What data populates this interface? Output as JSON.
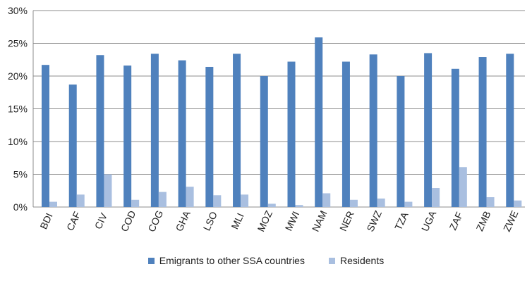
{
  "chart_data": {
    "type": "bar",
    "categories": [
      "BDI",
      "CAF",
      "CIV",
      "COD",
      "COG",
      "GHA",
      "LSO",
      "MLI",
      "MOZ",
      "MWI",
      "NAM",
      "NER",
      "SWZ",
      "TZA",
      "UGA",
      "ZAF",
      "ZMB",
      "ZWE"
    ],
    "series": [
      {
        "name": "Emigrants to other SSA countries",
        "color": "#4F81BD",
        "values": [
          21.7,
          18.7,
          23.2,
          21.6,
          23.4,
          22.4,
          21.4,
          23.4,
          20.0,
          22.2,
          25.9,
          22.2,
          23.3,
          20.0,
          23.5,
          21.1,
          22.9,
          23.4
        ]
      },
      {
        "name": "Residents",
        "color": "#A9BFE0",
        "values": [
          0.8,
          1.9,
          5.0,
          1.1,
          2.3,
          3.1,
          1.8,
          1.9,
          0.5,
          0.3,
          2.1,
          1.1,
          1.3,
          0.8,
          2.9,
          6.1,
          1.5,
          1.0
        ]
      }
    ],
    "yticks": [
      "0%",
      "5%",
      "10%",
      "15%",
      "20%",
      "25%",
      "30%"
    ],
    "ylim": [
      0,
      30
    ],
    "grid": true,
    "legend_position": "bottom",
    "title": "",
    "xlabel": "",
    "ylabel": ""
  }
}
